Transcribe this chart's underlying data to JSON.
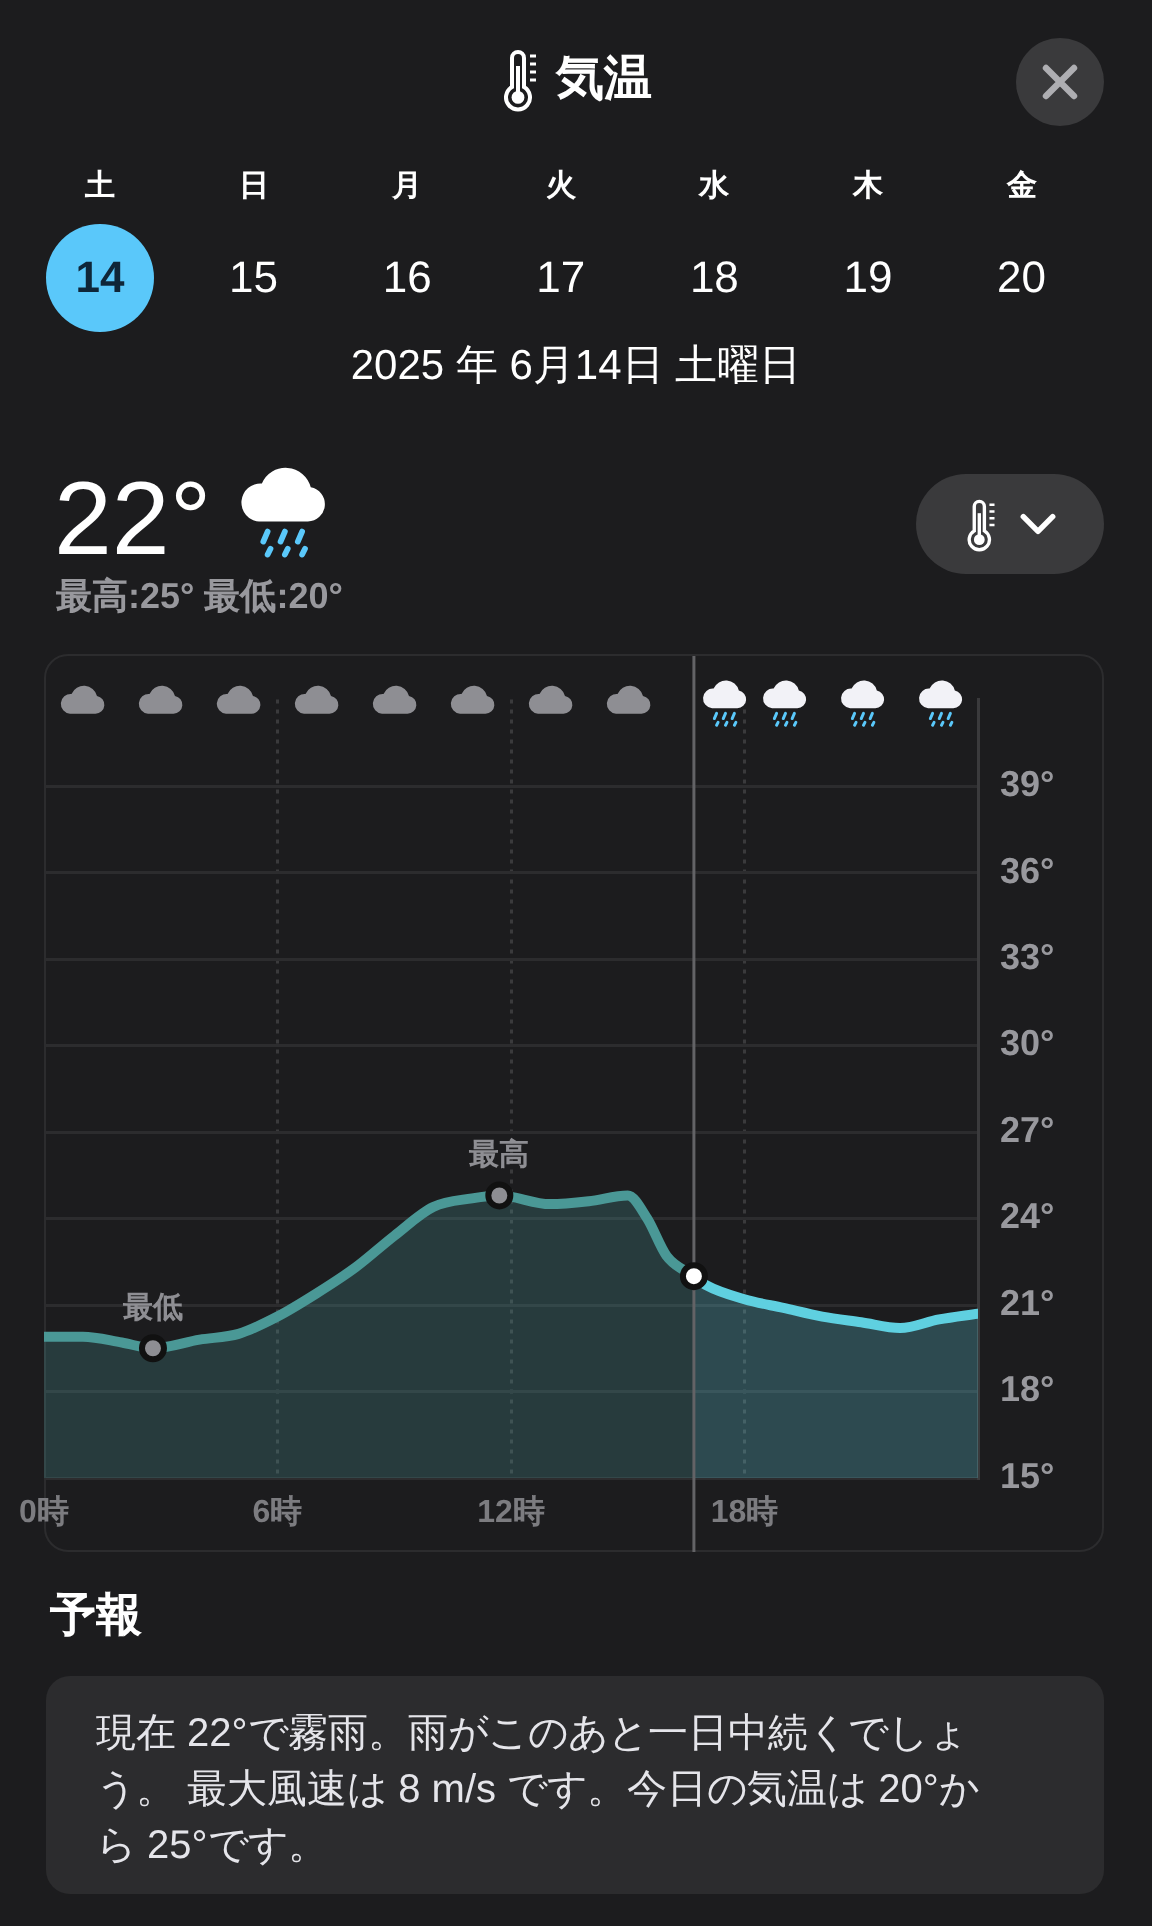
{
  "chart_data": {
    "type": "area",
    "title": "気温",
    "subtitle": "2025 年 6月14日 土曜日",
    "series": [
      {
        "type": "area",
        "color": "#4a9896",
        "x": [
          0,
          1,
          2,
          2.8,
          4,
          5,
          6,
          7,
          8,
          9,
          10,
          11,
          11.7,
          13,
          14,
          15,
          15.5,
          16,
          16.7
        ],
        "values": [
          19.9,
          19.9,
          19.7,
          19.5,
          19.8,
          20.0,
          20.6,
          21.4,
          22.3,
          23.4,
          24.4,
          24.7,
          24.8,
          24.5,
          24.6,
          24.8,
          24.0,
          22.7,
          22.0
        ]
      },
      {
        "type": "area",
        "color": "#5fd0e0",
        "x": [
          16.7,
          17,
          18,
          19,
          20,
          21,
          22,
          23,
          24
        ],
        "values": [
          22.0,
          21.7,
          21.2,
          20.9,
          20.6,
          20.4,
          20.2,
          20.5,
          20.7
        ]
      },
      {
        "type": "scatter",
        "marker": "circle",
        "x": [
          2.8,
          11.7,
          16.7
        ],
        "values": [
          19.5,
          24.8,
          22.0
        ],
        "colors": [
          "#8e8e93",
          "#8e8e93",
          "#ffffff"
        ]
      }
    ],
    "xlim": [
      0,
      24
    ],
    "xticks": [
      {
        "value": 0,
        "label": "0時"
      },
      {
        "value": 6,
        "label": "6時"
      },
      {
        "value": 12,
        "label": "12時"
      },
      {
        "value": 18,
        "label": "18時"
      }
    ],
    "ylim": [
      15,
      42
    ],
    "yticks": [
      {
        "value": 15,
        "label": "15°"
      },
      {
        "value": 18,
        "label": "18°"
      },
      {
        "value": 21,
        "label": "21°"
      },
      {
        "value": 24,
        "label": "24°"
      },
      {
        "value": 27,
        "label": "27°"
      },
      {
        "value": 30,
        "label": "30°"
      },
      {
        "value": 33,
        "label": "33°"
      },
      {
        "value": 36,
        "label": "36°"
      },
      {
        "value": 39,
        "label": "39°"
      }
    ],
    "grid": true,
    "ref_lines": [
      {
        "axis": "x",
        "value": 16.7,
        "color": "#636366"
      }
    ],
    "annotations": [
      "土",
      "日",
      "月",
      "火",
      "水",
      "木",
      "金",
      "14",
      "15",
      "16",
      "17",
      "18",
      "19",
      "20",
      "22°",
      "最高:25° 最低:20°",
      "予報",
      "現在 22°で霧雨。雨がこのあと一日中続くでしょう。 最大風速は 8 m/s です。今日の気温は 20°から 25°です。",
      {
        "text": "最低",
        "x": 2.8,
        "y": 19.5
      },
      {
        "text": "最高",
        "x": 11.7,
        "y": 24.8
      }
    ]
  }
}
